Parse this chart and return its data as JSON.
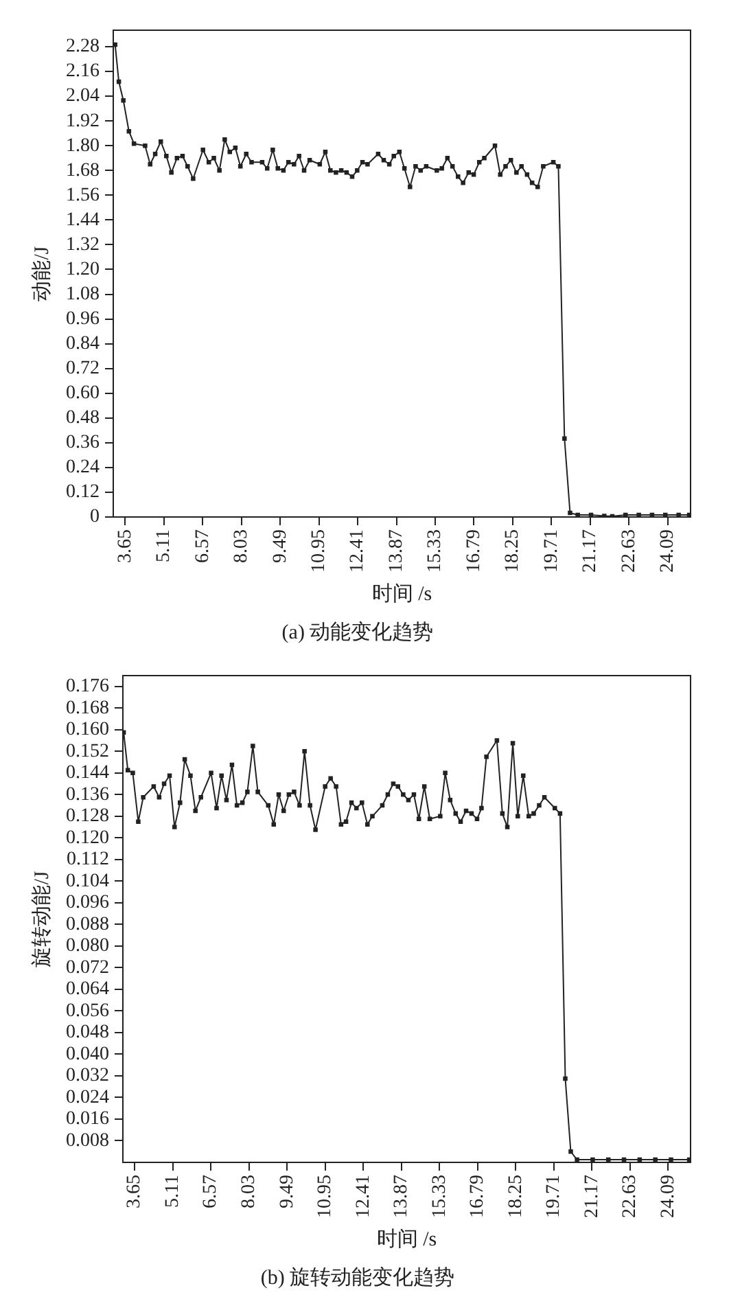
{
  "chart_data": [
    {
      "type": "line",
      "title": "(a) 动能变化趋势",
      "xlabel": "时间 /s",
      "ylabel": "动能/J",
      "marker": "square",
      "line_style": "solid",
      "x": [
        3.27,
        3.41,
        3.58,
        3.79,
        3.98,
        4.4,
        4.59,
        4.78,
        4.99,
        5.2,
        5.39,
        5.6,
        5.81,
        6.0,
        6.21,
        6.58,
        6.8,
        6.99,
        7.2,
        7.4,
        7.59,
        7.8,
        7.99,
        8.21,
        8.41,
        8.81,
        9.0,
        9.21,
        9.4,
        9.61,
        9.8,
        10.01,
        10.2,
        10.39,
        10.6,
        10.98,
        11.19,
        11.38,
        11.59,
        11.79,
        11.99,
        12.2,
        12.39,
        12.59,
        12.78,
        13.18,
        13.39,
        13.6,
        13.77,
        13.98,
        14.17,
        14.38,
        14.59,
        14.78,
        14.99,
        15.39,
        15.58,
        15.79,
        15.98,
        16.19,
        16.38,
        16.59,
        16.78,
        16.99,
        17.18,
        17.58,
        17.78,
        17.98,
        18.18,
        18.39,
        18.58,
        18.79,
        18.98,
        19.19,
        19.4,
        19.78,
        19.97,
        20.2,
        20.41,
        20.7,
        21.2,
        21.7,
        22.0,
        22.5,
        23.0,
        23.5,
        24.0,
        24.5,
        24.9
      ],
      "series": [
        {
          "color": "#222222",
          "values": [
            2.29,
            2.11,
            2.02,
            1.87,
            1.81,
            1.8,
            1.71,
            1.76,
            1.82,
            1.75,
            1.67,
            1.74,
            1.75,
            1.7,
            1.64,
            1.78,
            1.72,
            1.74,
            1.68,
            1.83,
            1.77,
            1.79,
            1.7,
            1.76,
            1.72,
            1.72,
            1.69,
            1.78,
            1.69,
            1.68,
            1.72,
            1.71,
            1.75,
            1.68,
            1.73,
            1.71,
            1.77,
            1.68,
            1.67,
            1.68,
            1.67,
            1.65,
            1.68,
            1.72,
            1.71,
            1.76,
            1.73,
            1.71,
            1.75,
            1.77,
            1.69,
            1.6,
            1.7,
            1.68,
            1.7,
            1.68,
            1.69,
            1.74,
            1.7,
            1.65,
            1.62,
            1.67,
            1.66,
            1.72,
            1.74,
            1.8,
            1.66,
            1.7,
            1.73,
            1.67,
            1.7,
            1.66,
            1.62,
            1.6,
            1.7,
            1.72,
            1.7,
            0.38,
            0.02,
            0.01,
            0.01,
            0.005,
            0.003,
            0.01,
            0.01,
            0.01,
            0.01,
            0.01,
            0.01
          ]
        }
      ],
      "xlim": [
        3.2,
        24.95
      ],
      "ylim": [
        0,
        2.36
      ],
      "xticks": [
        3.65,
        5.11,
        6.57,
        8.03,
        9.49,
        10.95,
        12.41,
        13.87,
        15.33,
        16.79,
        18.25,
        19.71,
        21.17,
        22.63,
        24.09
      ],
      "yticks": [
        0,
        0.12,
        0.24,
        0.36,
        0.48,
        {
          "value": 0.6,
          "label": "0.60"
        },
        0.72,
        0.84,
        0.96,
        1.08,
        {
          "value": 1.2,
          "label": "1.20"
        },
        1.32,
        1.44,
        1.56,
        1.68,
        {
          "value": 1.8,
          "label": "1.80"
        },
        1.92,
        2.04,
        2.16,
        2.28
      ]
    },
    {
      "type": "line",
      "title": "(b) 旋转动能变化趋势",
      "xlabel": "时间 /s",
      "ylabel": "旋转动能/J",
      "marker": "square",
      "line_style": "solid",
      "x": [
        3.23,
        3.39,
        3.58,
        3.79,
        3.98,
        4.38,
        4.59,
        4.78,
        4.99,
        5.18,
        5.39,
        5.57,
        5.79,
        5.98,
        6.19,
        6.58,
        6.79,
        6.98,
        7.17,
        7.38,
        7.57,
        7.78,
        7.97,
        8.18,
        8.37,
        8.77,
        8.98,
        9.17,
        9.36,
        9.56,
        9.76,
        9.97,
        10.16,
        10.37,
        10.58,
        10.95,
        11.16,
        11.37,
        11.56,
        11.75,
        11.96,
        12.15,
        12.36,
        12.57,
        12.76,
        13.14,
        13.35,
        13.56,
        13.74,
        13.94,
        14.14,
        14.35,
        14.54,
        14.75,
        14.96,
        15.36,
        15.55,
        15.74,
        15.95,
        16.14,
        16.35,
        16.56,
        16.77,
        16.94,
        17.13,
        17.53,
        17.74,
        17.93,
        18.14,
        18.33,
        18.54,
        18.75,
        18.94,
        19.15,
        19.35,
        19.75,
        19.95,
        20.15,
        20.36,
        20.6,
        21.2,
        21.8,
        22.4,
        23.0,
        23.6,
        24.2,
        24.9
      ],
      "series": [
        {
          "color": "#222222",
          "values": [
            0.159,
            0.145,
            0.144,
            0.126,
            0.135,
            0.139,
            0.135,
            0.14,
            0.143,
            0.124,
            0.133,
            0.149,
            0.143,
            0.13,
            0.135,
            0.144,
            0.131,
            0.143,
            0.134,
            0.147,
            0.132,
            0.133,
            0.137,
            0.154,
            0.137,
            0.132,
            0.125,
            0.136,
            0.13,
            0.136,
            0.137,
            0.132,
            0.152,
            0.132,
            0.123,
            0.139,
            0.142,
            0.139,
            0.125,
            0.126,
            0.133,
            0.131,
            0.133,
            0.125,
            0.128,
            0.132,
            0.136,
            0.14,
            0.139,
            0.136,
            0.134,
            0.136,
            0.127,
            0.139,
            0.127,
            0.128,
            0.144,
            0.134,
            0.129,
            0.126,
            0.13,
            0.129,
            0.127,
            0.131,
            0.15,
            0.156,
            0.129,
            0.124,
            0.155,
            0.128,
            0.143,
            0.128,
            0.129,
            0.132,
            0.135,
            0.131,
            0.129,
            0.031,
            0.004,
            0.001,
            0.001,
            0.001,
            0.001,
            0.001,
            0.001,
            0.001,
            0.001
          ]
        }
      ],
      "xlim": [
        3.2,
        24.95
      ],
      "ylim": [
        0,
        0.18
      ],
      "xticks": [
        3.65,
        5.11,
        6.57,
        8.03,
        9.49,
        10.95,
        12.41,
        13.87,
        15.33,
        16.79,
        18.25,
        19.71,
        21.17,
        22.63,
        24.09
      ],
      "yticks": [
        0.008,
        0.016,
        0.024,
        0.032,
        {
          "value": 0.04,
          "label": "0.040"
        },
        0.048,
        0.056,
        0.064,
        0.072,
        {
          "value": 0.08,
          "label": "0.080"
        },
        0.088,
        0.096,
        0.104,
        0.112,
        {
          "value": 0.12,
          "label": "0.120"
        },
        0.128,
        0.136,
        0.144,
        0.152,
        {
          "value": 0.16,
          "label": "0.160"
        },
        0.168,
        0.176
      ]
    }
  ]
}
